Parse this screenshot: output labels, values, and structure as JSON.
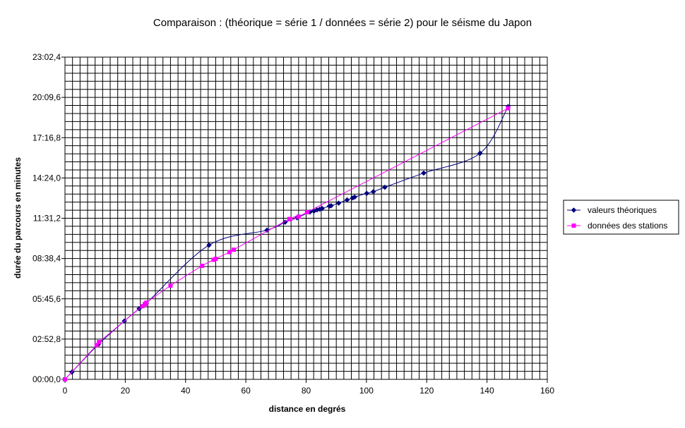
{
  "chart_data": {
    "type": "line",
    "title": "Comparaison : (théorique = série 1 / données = série 2) pour le séisme du Japon",
    "xlabel": "distance en degrés",
    "ylabel": "durée du parcours en minutes",
    "xlim": [
      0,
      160
    ],
    "ylim_seconds": [
      0,
      1382.4
    ],
    "x_ticks": [
      "0",
      "20",
      "40",
      "60",
      "80",
      "100",
      "120",
      "140",
      "160"
    ],
    "y_ticks": [
      "00:00,0",
      "02:52,8",
      "05:45,6",
      "08:38,4",
      "11:31,2",
      "14:24,0",
      "17:16,8",
      "20:09,6",
      "23:02,4"
    ],
    "grid": true,
    "legend_position": "right",
    "series": [
      {
        "name": "valeurs théoriques",
        "color": "#000080",
        "marker": "diamond",
        "x": [
          0,
          2.3,
          11,
          19.7,
          24.6,
          27,
          47.8,
          67,
          73,
          77,
          81.3,
          82.6,
          83.6,
          84.5,
          85.3,
          87.7,
          88.3,
          90.8,
          93.6,
          95.4,
          96.1,
          100.1,
          102.3,
          106.1,
          119,
          137.7,
          147
        ],
        "y": [
          0,
          31,
          149,
          250,
          303,
          326,
          576,
          640,
          674,
          693,
          718,
          722,
          727,
          730,
          733,
          743,
          745,
          756,
          770,
          778,
          782,
          798,
          805,
          824,
          885,
          970,
          1170
        ]
      },
      {
        "name": "données des stations",
        "color": "#ff00ff",
        "marker": "square",
        "x": [
          0,
          10.5,
          11.3,
          25.7,
          26.5,
          27,
          35,
          45.5,
          49.3,
          50,
          54.6,
          56,
          74.5,
          77.5,
          80.3,
          147
        ],
        "y": [
          0,
          147,
          160,
          314,
          323,
          329,
          402,
          487,
          513,
          517,
          546,
          556,
          688,
          698,
          717,
          1163
        ]
      }
    ]
  }
}
